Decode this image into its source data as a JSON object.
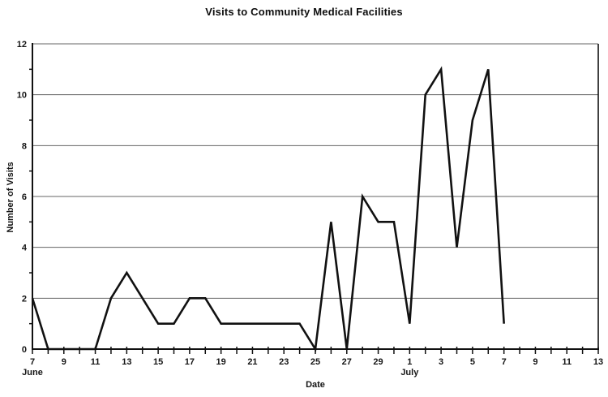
{
  "chart_data": {
    "type": "line",
    "title": "Visits to Community Medical Facilities",
    "xlabel": "Date",
    "ylabel": "Number of Visits",
    "ylim": [
      0,
      12
    ],
    "y_ticks": [
      0,
      2,
      4,
      6,
      8,
      10,
      12
    ],
    "x_axis_total_days": 37,
    "x_tick_labels": [
      "7",
      "9",
      "11",
      "13",
      "15",
      "17",
      "19",
      "21",
      "23",
      "25",
      "27",
      "29",
      "1",
      "3",
      "5",
      "7",
      "9",
      "11",
      "13"
    ],
    "x_tick_day_indices": [
      0,
      2,
      4,
      6,
      8,
      10,
      12,
      14,
      16,
      18,
      20,
      22,
      24,
      26,
      28,
      30,
      32,
      34,
      36
    ],
    "month_labels": [
      {
        "text": "June",
        "day_index": 0
      },
      {
        "text": "July",
        "day_index": 24
      }
    ],
    "grid": "horizontal",
    "legend": "none",
    "line_color": "#111111",
    "series": [
      {
        "name": "Visits",
        "dates": [
          "June 7",
          "June 8",
          "June 9",
          "June 10",
          "June 11",
          "June 12",
          "June 13",
          "June 14",
          "June 15",
          "June 16",
          "June 17",
          "June 18",
          "June 19",
          "June 20",
          "June 21",
          "June 22",
          "June 23",
          "June 24",
          "June 25",
          "June 26",
          "June 27",
          "June 28",
          "June 29",
          "June 30",
          "July 1",
          "July 2",
          "July 3",
          "July 4",
          "July 5",
          "July 6",
          "July 7"
        ],
        "values": [
          2,
          0,
          0,
          0,
          0,
          2,
          3,
          2,
          1,
          1,
          2,
          2,
          1,
          1,
          1,
          1,
          1,
          1,
          0,
          5,
          0,
          6,
          5,
          5,
          1,
          10,
          11,
          4,
          9,
          11,
          1
        ]
      }
    ]
  }
}
